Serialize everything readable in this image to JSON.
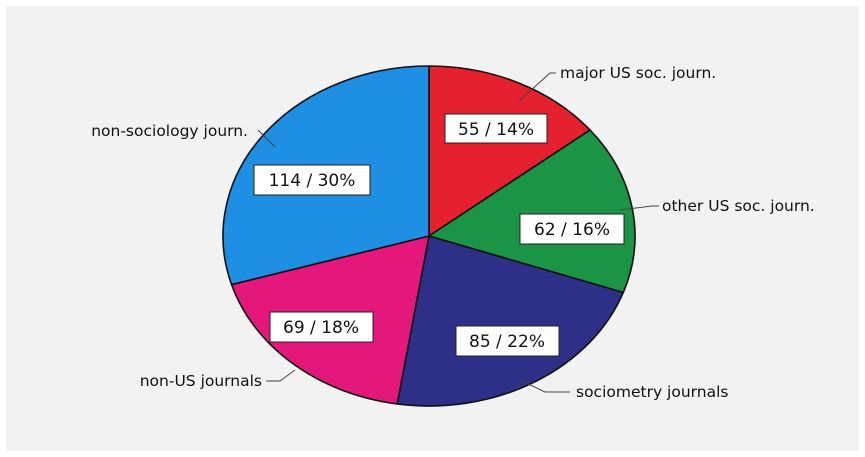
{
  "chart_data": {
    "type": "pie",
    "title": "",
    "slices": [
      {
        "label": "major US soc. journ.",
        "value": 55,
        "percent": 14,
        "display": "55 / 14%",
        "color": "#e5202f"
      },
      {
        "label": "other US soc. journ.",
        "value": 62,
        "percent": 16,
        "display": "62 / 16%",
        "color": "#1b9445"
      },
      {
        "label": "sociometry journals",
        "value": 85,
        "percent": 22,
        "display": "85 / 22%",
        "color": "#2e2f86"
      },
      {
        "label": "non-US journals",
        "value": 69,
        "percent": 18,
        "display": "69 / 18%",
        "color": "#e4177a"
      },
      {
        "label": "non-sociology journ.",
        "value": 114,
        "percent": 30,
        "display": "114 / 30%",
        "color": "#1e8fe3"
      }
    ],
    "start_angle": "12 o'clock",
    "direction": "clockwise"
  }
}
